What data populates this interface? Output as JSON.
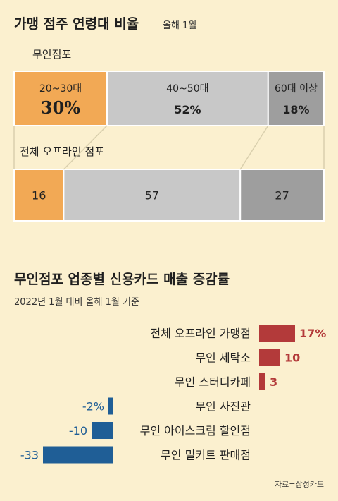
{
  "chart_data": [
    {
      "type": "bar",
      "title": "가맹 점주 연령대 비율",
      "subtitle": "올해 1월",
      "stacked": true,
      "orientation": "horizontal",
      "categories": [
        "무인점포",
        "전체 오프라인 점포"
      ],
      "series": [
        {
          "name": "20~30대",
          "color": "#f2a955",
          "values": [
            30,
            16
          ],
          "value_labels": [
            "30%",
            "16"
          ]
        },
        {
          "name": "40~50대",
          "color": "#c8c8c8",
          "values": [
            52,
            57
          ],
          "value_labels": [
            "52%",
            "57"
          ]
        },
        {
          "name": "60대 이상",
          "color": "#9e9e9e",
          "values": [
            18,
            27
          ],
          "value_labels": [
            "18%",
            "27"
          ]
        }
      ]
    },
    {
      "type": "bar",
      "title": "무인점포 업종별 신용카드 매출 증감률",
      "subtitle": "2022년 1월 대비 올해 1월 기준",
      "orientation": "horizontal",
      "categories": [
        "전체 오프라인 가맹점",
        "무인 세탁소",
        "무인 스터디카페",
        "무인 사진관",
        "무인 아이스크림 할인점",
        "무인 밀키트 판매점"
      ],
      "values": [
        17,
        10,
        3,
        -2,
        -10,
        -33
      ],
      "value_labels": [
        "17%",
        "10",
        "3",
        "-2%",
        "-10",
        "-33"
      ],
      "colors": {
        "positive": "#b33a3a",
        "negative": "#1f5e96"
      },
      "source": "자료=삼성카드"
    }
  ]
}
